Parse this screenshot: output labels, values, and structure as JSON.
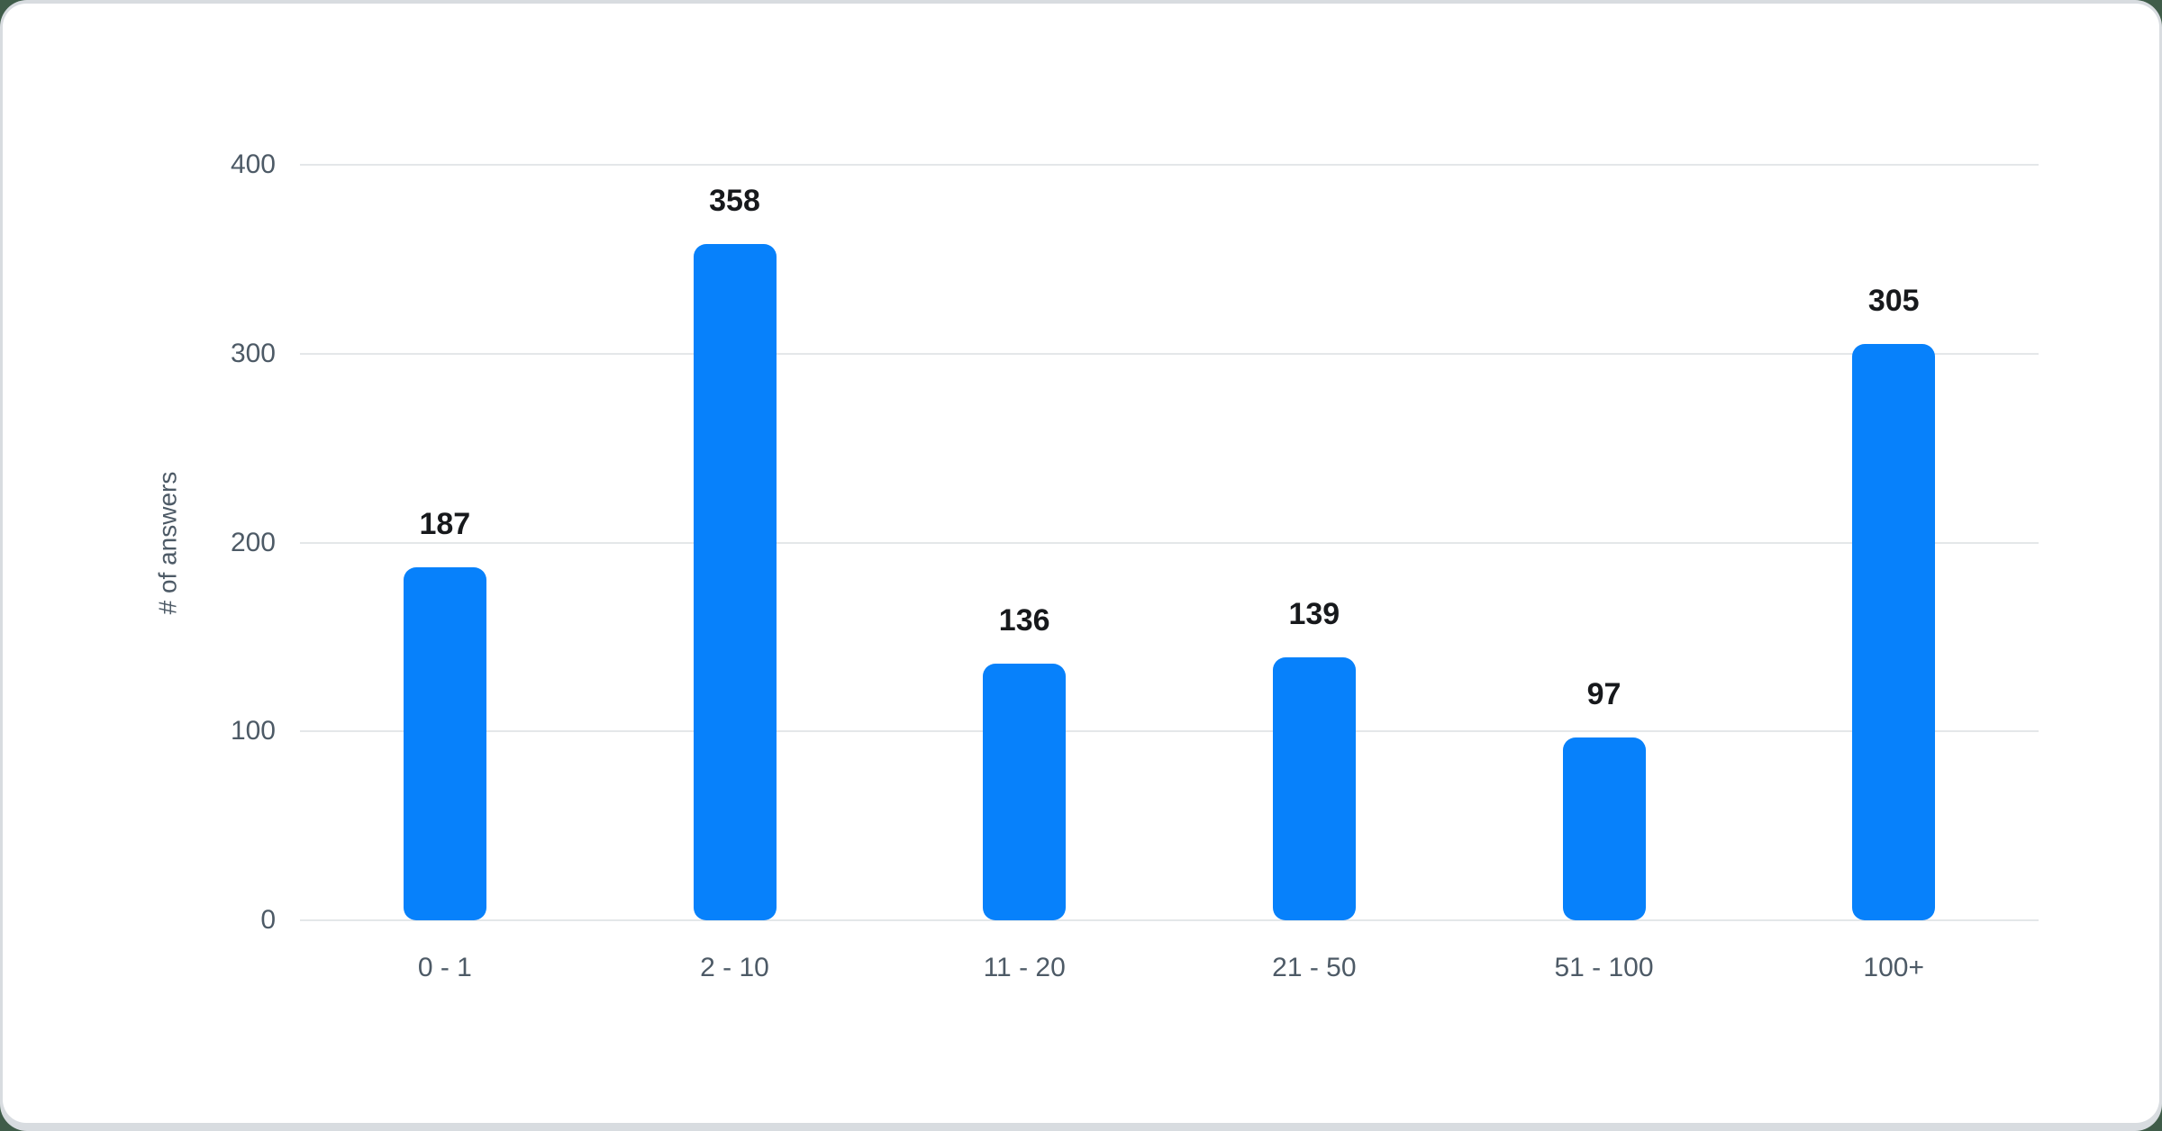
{
  "chart_data": {
    "type": "bar",
    "categories": [
      "0 - 1",
      "2 - 10",
      "11 - 20",
      "21 - 50",
      "51 - 100",
      "100+"
    ],
    "values": [
      187,
      358,
      136,
      139,
      97,
      305
    ],
    "title": "",
    "xlabel": "",
    "ylabel": "# of answers",
    "ylim": [
      0,
      400
    ],
    "yticks": [
      0,
      100,
      200,
      300,
      400
    ],
    "grid": true,
    "legend": "none",
    "value_labels": [
      187,
      358,
      136,
      139,
      97,
      305
    ],
    "colors": {
      "bar": "#0781fb",
      "gridline": "#e4e7e9",
      "axis_text": "#4d5a66",
      "value_label_text": "#17191c",
      "card_background": "#ffffff",
      "outer_background": "#d8dce0"
    }
  }
}
